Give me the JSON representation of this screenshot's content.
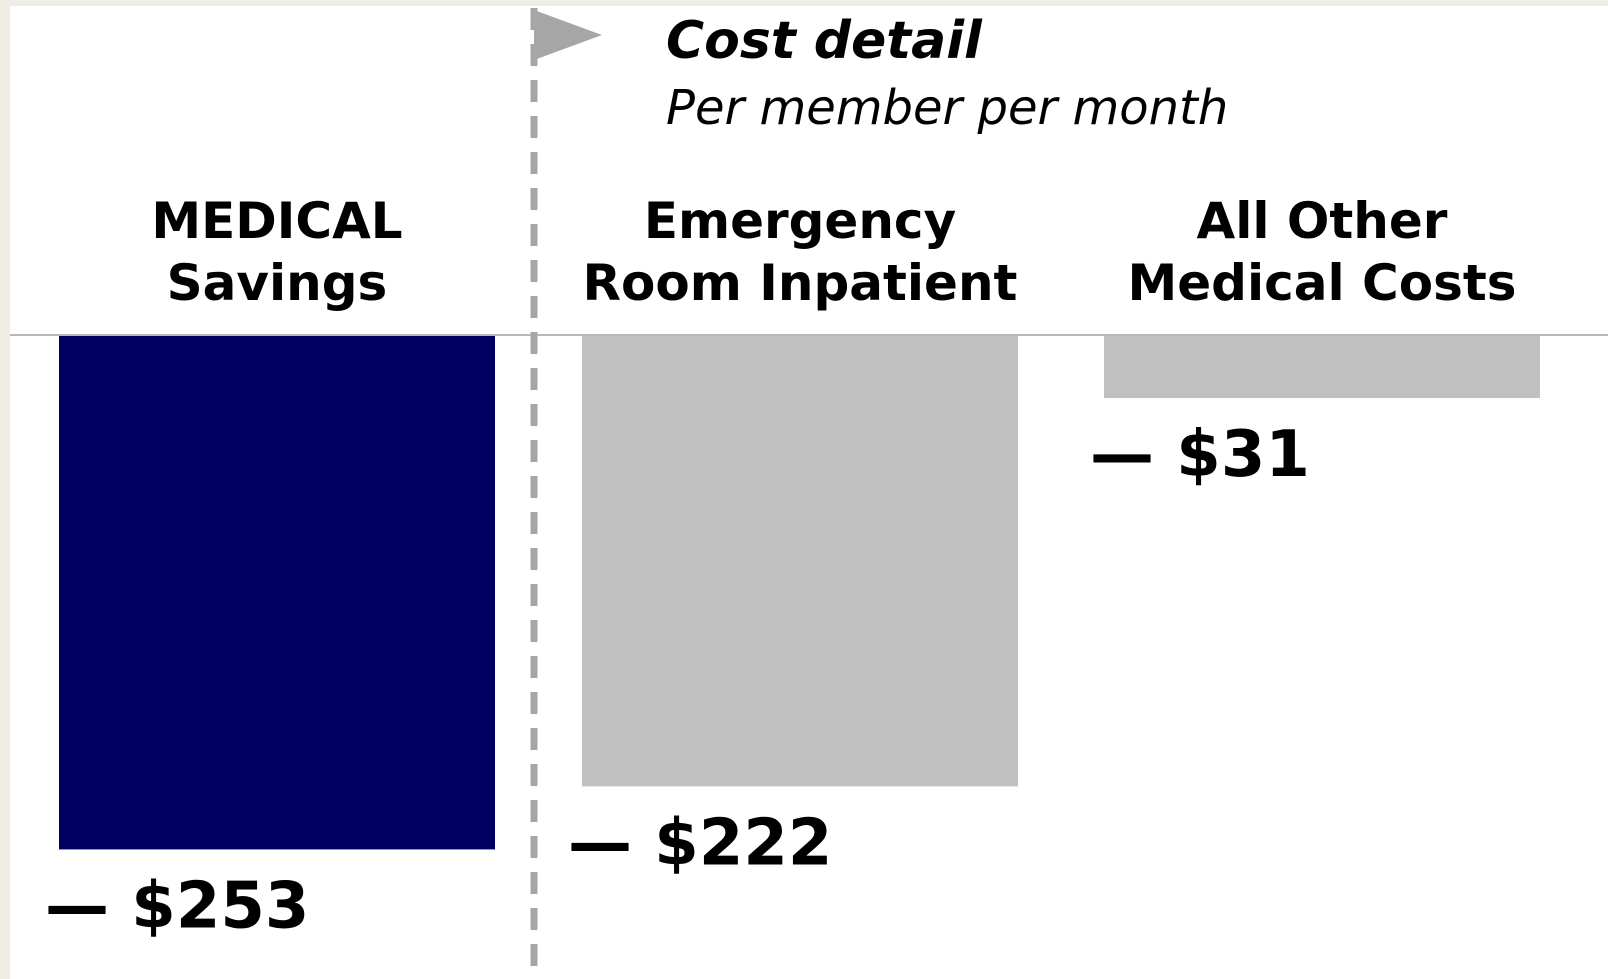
{
  "chart_data": {
    "type": "bar",
    "title": "Cost detail",
    "subtitle": "Per member per month",
    "categories": [
      [
        "MEDICAL",
        "Savings"
      ],
      [
        "Emergency",
        "Room Inpatient"
      ],
      [
        "All Other",
        "Medical Costs"
      ]
    ],
    "values": [
      -253,
      -222,
      -31
    ],
    "value_labels": [
      "— $253",
      "— $222",
      "— $31"
    ],
    "colors": [
      "#000060",
      "#c0c0c0",
      "#c0c0c0"
    ],
    "ylim": [
      -300,
      0
    ]
  }
}
